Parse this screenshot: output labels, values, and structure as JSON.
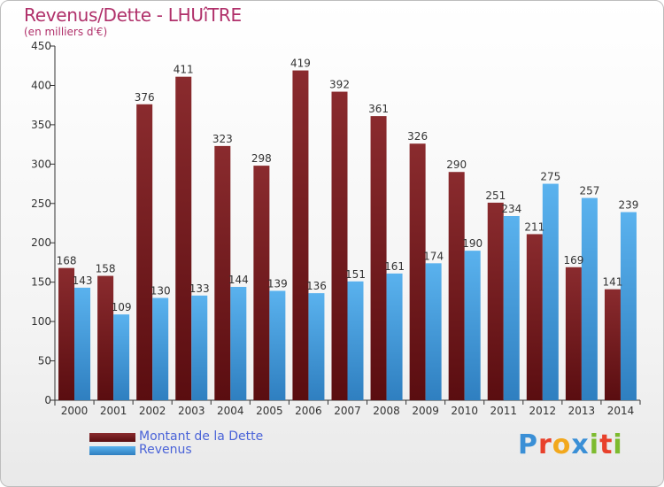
{
  "header": {
    "title": "Revenus/Dette - LHUîTRE",
    "subtitle": "(en milliers d'€)"
  },
  "colors": {
    "debt": "#7a1f22",
    "revenue": "#4ea6e6",
    "title": "#b0306a",
    "legend_text": "#4a63d8"
  },
  "logo": {
    "text": "Proxiti",
    "letters": [
      {
        "ch": "P",
        "color": "#3a8fd6"
      },
      {
        "ch": "r",
        "color": "#e8412c"
      },
      {
        "ch": "o",
        "color": "#f2a81d"
      },
      {
        "ch": "x",
        "color": "#3a8fd6"
      },
      {
        "ch": "i",
        "color": "#7dbb2f"
      },
      {
        "ch": "t",
        "color": "#e8412c"
      },
      {
        "ch": "i",
        "color": "#7dbb2f"
      }
    ]
  },
  "chart_data": {
    "type": "bar",
    "categories": [
      "2000",
      "2001",
      "2002",
      "2003",
      "2004",
      "2005",
      "2006",
      "2007",
      "2008",
      "2009",
      "2010",
      "2011",
      "2012",
      "2013",
      "2014"
    ],
    "series": [
      {
        "name": "Montant de la Dette",
        "values": [
          168,
          158,
          376,
          411,
          323,
          298,
          419,
          392,
          361,
          326,
          290,
          251,
          211,
          169,
          141
        ]
      },
      {
        "name": "Revenus",
        "values": [
          143,
          109,
          130,
          133,
          144,
          139,
          136,
          151,
          161,
          174,
          190,
          234,
          275,
          257,
          239
        ]
      }
    ],
    "ylim": [
      0,
      450
    ],
    "yticks": [
      "0",
      "50",
      "100",
      "150",
      "200",
      "250",
      "300",
      "350",
      "400",
      "450"
    ],
    "grid": false,
    "legend_position": "bottom-left",
    "data_labels": true
  }
}
